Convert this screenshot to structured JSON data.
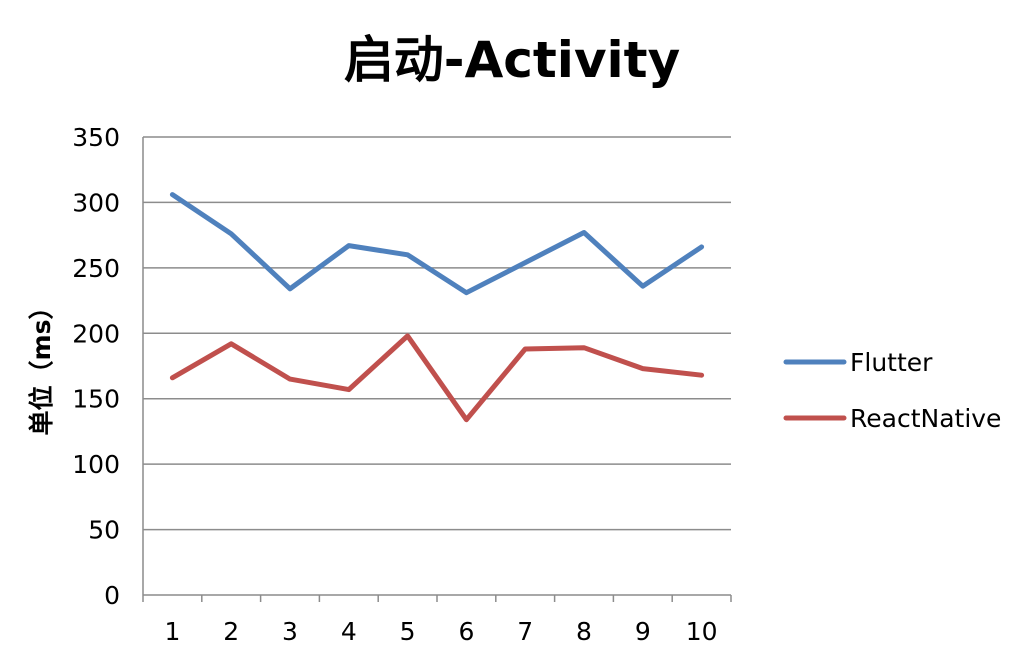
{
  "chart_data": {
    "type": "line",
    "title": "启动-Activity",
    "xlabel": "",
    "ylabel": "单位（ms）",
    "x": [
      "1",
      "2",
      "3",
      "4",
      "5",
      "6",
      "7",
      "8",
      "9",
      "10"
    ],
    "ylim": [
      0,
      350
    ],
    "yticks": [
      "0",
      "50",
      "100",
      "150",
      "200",
      "250",
      "300",
      "350"
    ],
    "grid": true,
    "legend_position": "right",
    "series": [
      {
        "name": "Flutter",
        "color": "#4f81bd",
        "values": [
          306,
          276,
          234,
          267,
          260,
          231,
          254,
          277,
          236,
          266
        ]
      },
      {
        "name": "ReactNative",
        "color": "#c0504d",
        "values": [
          166,
          192,
          165,
          157,
          198,
          134,
          188,
          189,
          173,
          168
        ]
      }
    ]
  }
}
